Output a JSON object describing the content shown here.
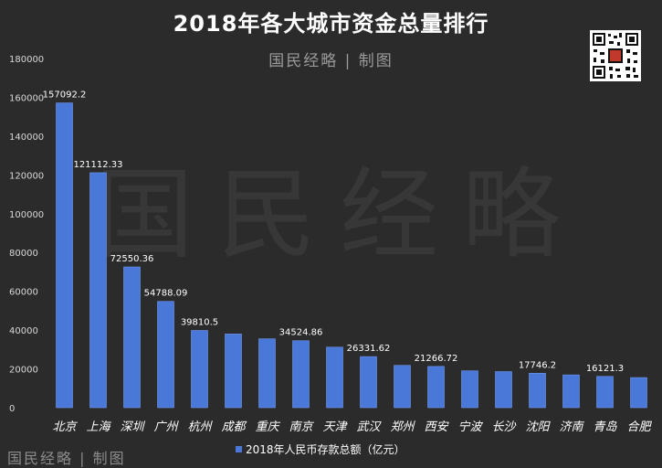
{
  "header": {
    "title": "2018年各大城市资金总量排行",
    "brand": "国民经略 | 制图"
  },
  "watermark": {
    "text": "国民经略"
  },
  "footer": {
    "brand": "国民经略 | 制图"
  },
  "colors": {
    "background": "#2b2b2b",
    "bar": "#4a78d8",
    "bar_edge": "#6f98ee"
  },
  "chart_data": {
    "type": "bar",
    "title": "2018年各大城市资金总量排行",
    "categories": [
      "北京",
      "上海",
      "深圳",
      "广州",
      "杭州",
      "成都",
      "重庆",
      "南京",
      "天津",
      "武汉",
      "郑州",
      "西安",
      "宁波",
      "长沙",
      "沈阳",
      "济南",
      "青岛",
      "合肥"
    ],
    "series": [
      {
        "name": "2018年人民币存款总额（亿元）",
        "values": [
          157092.2,
          121112.33,
          72550.36,
          54788.09,
          39810.5,
          38000,
          35500,
          34524.86,
          31200,
          26331.62,
          21800,
          21266.72,
          19000,
          18600,
          17746.2,
          16900,
          16121.3,
          15500
        ]
      }
    ],
    "data_labels": [
      "157092.2",
      "121112.33",
      "72550.36",
      "54788.09",
      "39810.5",
      "",
      "",
      "34524.86",
      "",
      "26331.62",
      "",
      "21266.72",
      "",
      "",
      "17746.2",
      "",
      "16121.3",
      ""
    ],
    "ylim": [
      0,
      180000
    ],
    "yticks": [
      "0",
      "20000",
      "40000",
      "60000",
      "80000",
      "100000",
      "120000",
      "140000",
      "160000",
      "180000"
    ],
    "legend_position": "bottom",
    "xlabel": "",
    "ylabel": ""
  }
}
